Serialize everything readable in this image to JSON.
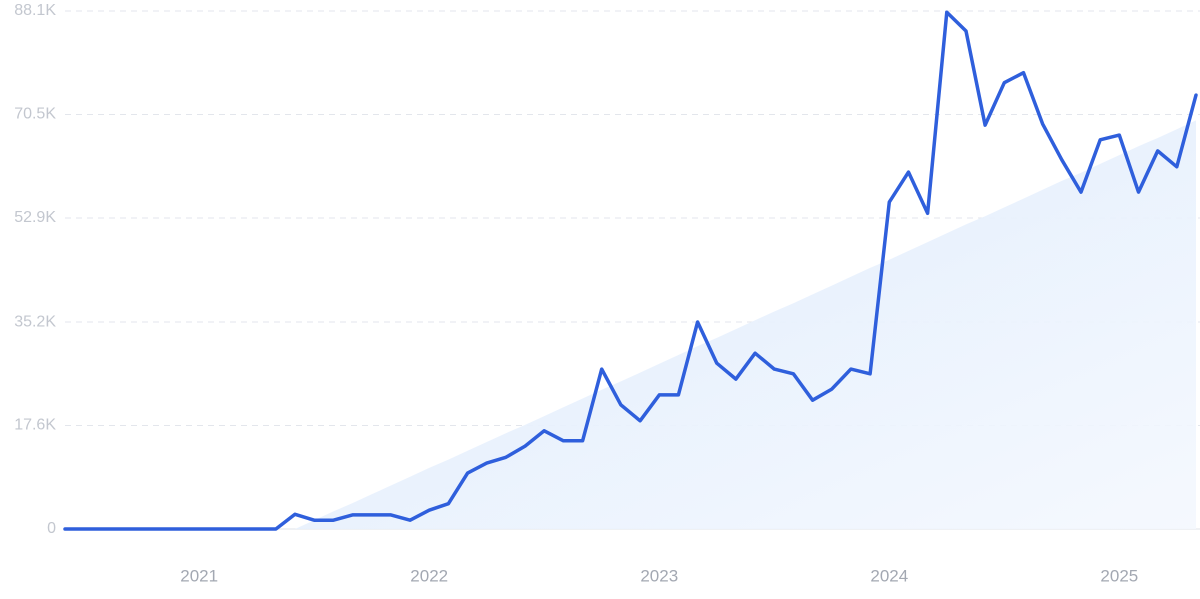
{
  "chart_data": {
    "type": "line",
    "categories": [
      null,
      null,
      null,
      null,
      null,
      null,
      null,
      "2021",
      null,
      null,
      null,
      null,
      null,
      null,
      null,
      null,
      null,
      null,
      null,
      "2022",
      null,
      null,
      null,
      null,
      null,
      null,
      null,
      null,
      null,
      null,
      null,
      "2023",
      null,
      null,
      null,
      null,
      null,
      null,
      null,
      null,
      null,
      null,
      null,
      "2024",
      null,
      null,
      null,
      null,
      null,
      null,
      null,
      null,
      null,
      null,
      null,
      "2025",
      null,
      null,
      null,
      null
    ],
    "series": [
      {
        "color": "#2f5fdc",
        "values": [
          0,
          0,
          0,
          0,
          0,
          0,
          0,
          0,
          0,
          0,
          0,
          0,
          2500,
          1500,
          1500,
          2400,
          2400,
          2400,
          1500,
          3200,
          4300,
          9500,
          11200,
          12200,
          14100,
          16700,
          15000,
          15000,
          27200,
          21100,
          18400,
          22800,
          22800,
          35200,
          28200,
          25500,
          29900,
          27200,
          26400,
          21900,
          23800,
          27200,
          26400,
          55600,
          60700,
          53700,
          87900,
          84700,
          68700,
          75900,
          77600,
          68900,
          62800,
          57300,
          66200,
          67000,
          57300,
          64300,
          61600,
          73800
        ]
      }
    ],
    "trend": {
      "color": "#e3efff",
      "values": [
        null,
        null,
        null,
        null,
        null,
        null,
        null,
        null,
        null,
        null,
        null,
        null,
        0,
        1500,
        3000,
        4400,
        5900,
        7400,
        8900,
        10400,
        11800,
        13300,
        14800,
        16300,
        17700,
        19200,
        20700,
        22200,
        23700,
        25100,
        26600,
        28100,
        29600,
        31100,
        32500,
        34000,
        35500,
        37000,
        38400,
        39900,
        41400,
        42900,
        44400,
        45800,
        47300,
        48800,
        50300,
        51800,
        53200,
        54700,
        56200,
        57700,
        59200,
        60600,
        62100,
        63600,
        65100,
        66500,
        68000,
        69500
      ]
    },
    "ylim": [
      0,
      88100
    ],
    "yticks": [
      0,
      {
        "value": 17600,
        "label": "17.6K"
      },
      {
        "value": 35200,
        "label": "35.2K"
      },
      {
        "value": 52900,
        "label": "52.9K"
      },
      {
        "value": 70500,
        "label": "70.5K"
      },
      {
        "value": 88100,
        "label": "88.1K"
      }
    ],
    "grid": true
  }
}
